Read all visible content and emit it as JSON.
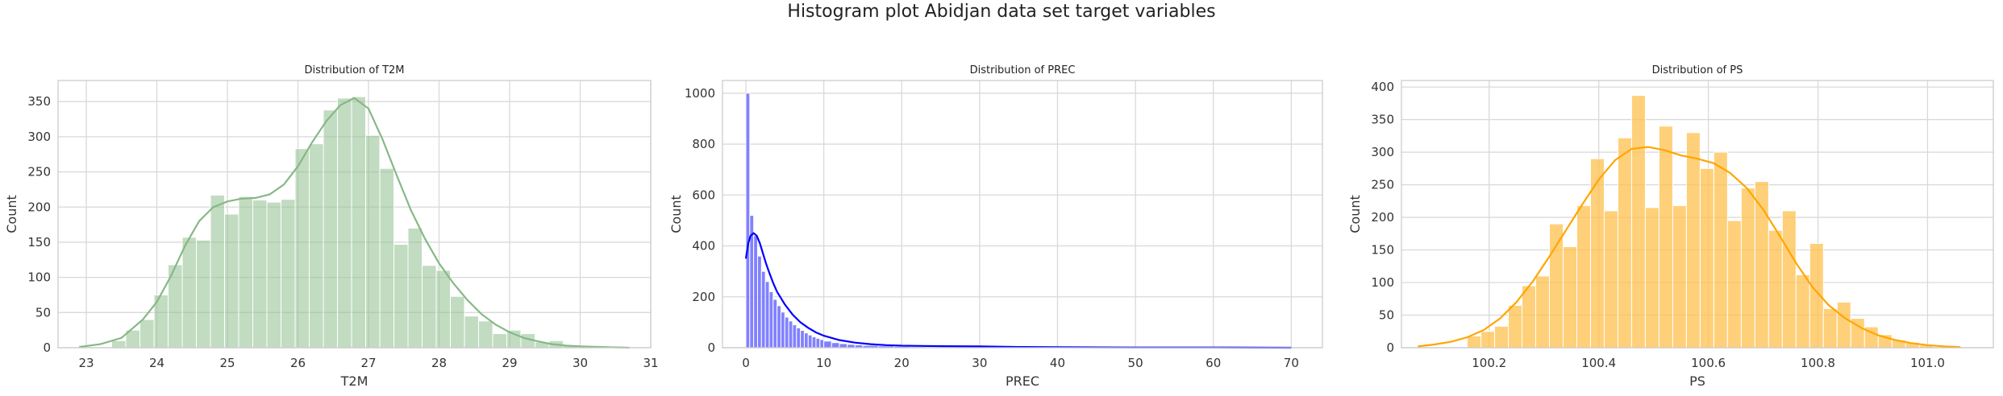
{
  "figure": {
    "title": "Histogram plot Abidjan data set target variables"
  },
  "chart_data": [
    {
      "type": "histogram",
      "title": "Distribution of T2M",
      "xlabel": "T2M",
      "ylabel": "Count",
      "color": "#8fbf8f",
      "kde_color": "#86b886",
      "bar_opacity": 0.55,
      "xlim": [
        22.6,
        31.0
      ],
      "ylim": [
        0,
        380
      ],
      "xticks": [
        23,
        24,
        25,
        26,
        27,
        28,
        29,
        30,
        31
      ],
      "yticks": [
        0,
        50,
        100,
        150,
        200,
        250,
        300,
        350
      ],
      "grid": true,
      "bins": [
        {
          "x0": 23.36,
          "x1": 23.56,
          "count": 10
        },
        {
          "x0": 23.56,
          "x1": 23.76,
          "count": 25
        },
        {
          "x0": 23.76,
          "x1": 23.96,
          "count": 40
        },
        {
          "x0": 23.96,
          "x1": 24.16,
          "count": 75
        },
        {
          "x0": 24.16,
          "x1": 24.36,
          "count": 118
        },
        {
          "x0": 24.36,
          "x1": 24.56,
          "count": 157
        },
        {
          "x0": 24.56,
          "x1": 24.76,
          "count": 153
        },
        {
          "x0": 24.76,
          "x1": 24.96,
          "count": 217
        },
        {
          "x0": 24.96,
          "x1": 25.16,
          "count": 190
        },
        {
          "x0": 25.16,
          "x1": 25.36,
          "count": 215
        },
        {
          "x0": 25.36,
          "x1": 25.56,
          "count": 210
        },
        {
          "x0": 25.56,
          "x1": 25.76,
          "count": 207
        },
        {
          "x0": 25.76,
          "x1": 25.96,
          "count": 211
        },
        {
          "x0": 25.96,
          "x1": 26.16,
          "count": 283
        },
        {
          "x0": 26.16,
          "x1": 26.36,
          "count": 290
        },
        {
          "x0": 26.36,
          "x1": 26.56,
          "count": 338
        },
        {
          "x0": 26.56,
          "x1": 26.76,
          "count": 355
        },
        {
          "x0": 26.76,
          "x1": 26.96,
          "count": 357
        },
        {
          "x0": 26.96,
          "x1": 27.16,
          "count": 302
        },
        {
          "x0": 27.16,
          "x1": 27.36,
          "count": 255
        },
        {
          "x0": 27.36,
          "x1": 27.56,
          "count": 147
        },
        {
          "x0": 27.56,
          "x1": 27.76,
          "count": 170
        },
        {
          "x0": 27.76,
          "x1": 27.96,
          "count": 117
        },
        {
          "x0": 27.96,
          "x1": 28.16,
          "count": 110
        },
        {
          "x0": 28.16,
          "x1": 28.36,
          "count": 73
        },
        {
          "x0": 28.36,
          "x1": 28.56,
          "count": 45
        },
        {
          "x0": 28.56,
          "x1": 28.76,
          "count": 38
        },
        {
          "x0": 28.76,
          "x1": 28.96,
          "count": 20
        },
        {
          "x0": 28.96,
          "x1": 29.16,
          "count": 25
        },
        {
          "x0": 29.16,
          "x1": 29.36,
          "count": 20
        },
        {
          "x0": 29.36,
          "x1": 29.56,
          "count": 8
        },
        {
          "x0": 29.56,
          "x1": 29.76,
          "count": 10
        },
        {
          "x0": 29.76,
          "x1": 29.96,
          "count": 3
        }
      ],
      "kde": {
        "x": [
          22.9,
          23.2,
          23.5,
          23.8,
          24.0,
          24.2,
          24.4,
          24.6,
          24.8,
          25.0,
          25.2,
          25.4,
          25.6,
          25.8,
          26.0,
          26.2,
          26.4,
          26.6,
          26.8,
          27.0,
          27.2,
          27.4,
          27.6,
          27.8,
          28.0,
          28.2,
          28.4,
          28.6,
          28.8,
          29.0,
          29.2,
          29.4,
          29.6,
          29.8,
          30.0,
          30.3,
          30.7
        ],
        "y": [
          1,
          5,
          14,
          40,
          65,
          102,
          145,
          180,
          200,
          208,
          212,
          213,
          218,
          232,
          258,
          292,
          322,
          345,
          355,
          340,
          296,
          245,
          196,
          155,
          120,
          92,
          68,
          48,
          33,
          22,
          14,
          9,
          5,
          3,
          2,
          1,
          0
        ]
      }
    },
    {
      "type": "histogram",
      "title": "Distribution of PREC",
      "xlabel": "PREC",
      "ylabel": "Count",
      "color": "#6b6bff",
      "kde_color": "#0000ff",
      "bar_opacity": 0.85,
      "xlim": [
        -3.0,
        74.0
      ],
      "ylim": [
        0,
        1050
      ],
      "xticks": [
        0,
        10,
        20,
        30,
        40,
        50,
        60,
        70
      ],
      "yticks": [
        0,
        200,
        400,
        600,
        800,
        1000
      ],
      "grid": true,
      "bins": [
        {
          "x0": 0.0,
          "x1": 0.5,
          "count": 1000
        },
        {
          "x0": 0.5,
          "x1": 1.0,
          "count": 520
        },
        {
          "x0": 1.0,
          "x1": 1.5,
          "count": 440
        },
        {
          "x0": 1.5,
          "x1": 2.0,
          "count": 360
        },
        {
          "x0": 2.0,
          "x1": 2.5,
          "count": 300
        },
        {
          "x0": 2.5,
          "x1": 3.0,
          "count": 260
        },
        {
          "x0": 3.0,
          "x1": 3.5,
          "count": 220
        },
        {
          "x0": 3.5,
          "x1": 4.0,
          "count": 190
        },
        {
          "x0": 4.0,
          "x1": 4.5,
          "count": 165
        },
        {
          "x0": 4.5,
          "x1": 5.0,
          "count": 140
        },
        {
          "x0": 5.0,
          "x1": 5.5,
          "count": 120
        },
        {
          "x0": 5.5,
          "x1": 6.0,
          "count": 105
        },
        {
          "x0": 6.0,
          "x1": 6.5,
          "count": 90
        },
        {
          "x0": 6.5,
          "x1": 7.0,
          "count": 78
        },
        {
          "x0": 7.0,
          "x1": 7.5,
          "count": 68
        },
        {
          "x0": 7.5,
          "x1": 8.0,
          "count": 58
        },
        {
          "x0": 8.0,
          "x1": 8.5,
          "count": 50
        },
        {
          "x0": 8.5,
          "x1": 9.0,
          "count": 43
        },
        {
          "x0": 9.0,
          "x1": 9.5,
          "count": 37
        },
        {
          "x0": 9.5,
          "x1": 10.0,
          "count": 32
        },
        {
          "x0": 10.0,
          "x1": 11.0,
          "count": 26
        },
        {
          "x0": 11.0,
          "x1": 12.0,
          "count": 20
        },
        {
          "x0": 12.0,
          "x1": 13.0,
          "count": 16
        },
        {
          "x0": 13.0,
          "x1": 14.0,
          "count": 13
        },
        {
          "x0": 14.0,
          "x1": 15.0,
          "count": 11
        },
        {
          "x0": 15.0,
          "x1": 17.0,
          "count": 9
        },
        {
          "x0": 17.0,
          "x1": 19.0,
          "count": 7
        },
        {
          "x0": 19.0,
          "x1": 21.0,
          "count": 5
        },
        {
          "x0": 21.0,
          "x1": 23.0,
          "count": 4
        },
        {
          "x0": 23.0,
          "x1": 26.0,
          "count": 3
        },
        {
          "x0": 26.0,
          "x1": 30.0,
          "count": 2
        },
        {
          "x0": 30.0,
          "x1": 36.0,
          "count": 1
        },
        {
          "x0": 36.0,
          "x1": 45.0,
          "count": 1
        }
      ],
      "kde": {
        "x": [
          0,
          0.3,
          0.6,
          1.0,
          1.4,
          1.8,
          2.2,
          2.6,
          3.0,
          3.5,
          4,
          5,
          6,
          7,
          8,
          9,
          10,
          12,
          14,
          16,
          18,
          20,
          25,
          30,
          35,
          40,
          50,
          60,
          70
        ],
        "y": [
          350,
          410,
          440,
          450,
          440,
          410,
          370,
          330,
          295,
          255,
          220,
          170,
          130,
          100,
          78,
          60,
          47,
          30,
          20,
          14,
          10,
          8,
          6,
          5,
          3,
          2,
          1,
          1,
          0
        ]
      }
    },
    {
      "type": "histogram",
      "title": "Distribution of PS",
      "xlabel": "PS",
      "ylabel": "Count",
      "color": "#ffc04d",
      "kde_color": "#ffa500",
      "bar_opacity": 0.75,
      "xlim": [
        100.04,
        101.12
      ],
      "ylim": [
        0,
        410
      ],
      "xticks": [
        100.2,
        100.4,
        100.6,
        100.8,
        101.0
      ],
      "xtick_labels": [
        "100.2",
        "100.4",
        "100.6",
        "100.8",
        "101.0"
      ],
      "yticks": [
        0,
        50,
        100,
        150,
        200,
        250,
        300,
        350,
        400
      ],
      "grid": true,
      "bins": [
        {
          "x0": 100.16,
          "x1": 100.185,
          "count": 18
        },
        {
          "x0": 100.185,
          "x1": 100.21,
          "count": 25
        },
        {
          "x0": 100.21,
          "x1": 100.235,
          "count": 33
        },
        {
          "x0": 100.235,
          "x1": 100.26,
          "count": 65
        },
        {
          "x0": 100.26,
          "x1": 100.285,
          "count": 95
        },
        {
          "x0": 100.285,
          "x1": 100.31,
          "count": 110
        },
        {
          "x0": 100.31,
          "x1": 100.335,
          "count": 190
        },
        {
          "x0": 100.335,
          "x1": 100.36,
          "count": 155
        },
        {
          "x0": 100.36,
          "x1": 100.385,
          "count": 218
        },
        {
          "x0": 100.385,
          "x1": 100.41,
          "count": 290
        },
        {
          "x0": 100.41,
          "x1": 100.435,
          "count": 210
        },
        {
          "x0": 100.435,
          "x1": 100.46,
          "count": 322
        },
        {
          "x0": 100.46,
          "x1": 100.485,
          "count": 387
        },
        {
          "x0": 100.485,
          "x1": 100.51,
          "count": 215
        },
        {
          "x0": 100.51,
          "x1": 100.535,
          "count": 340
        },
        {
          "x0": 100.535,
          "x1": 100.56,
          "count": 218
        },
        {
          "x0": 100.56,
          "x1": 100.585,
          "count": 330
        },
        {
          "x0": 100.585,
          "x1": 100.61,
          "count": 275
        },
        {
          "x0": 100.61,
          "x1": 100.635,
          "count": 300
        },
        {
          "x0": 100.635,
          "x1": 100.66,
          "count": 195
        },
        {
          "x0": 100.66,
          "x1": 100.685,
          "count": 245
        },
        {
          "x0": 100.685,
          "x1": 100.71,
          "count": 255
        },
        {
          "x0": 100.71,
          "x1": 100.735,
          "count": 180
        },
        {
          "x0": 100.735,
          "x1": 100.76,
          "count": 210
        },
        {
          "x0": 100.76,
          "x1": 100.785,
          "count": 112
        },
        {
          "x0": 100.785,
          "x1": 100.81,
          "count": 160
        },
        {
          "x0": 100.81,
          "x1": 100.835,
          "count": 60
        },
        {
          "x0": 100.835,
          "x1": 100.86,
          "count": 70
        },
        {
          "x0": 100.86,
          "x1": 100.885,
          "count": 45
        },
        {
          "x0": 100.885,
          "x1": 100.91,
          "count": 32
        },
        {
          "x0": 100.91,
          "x1": 100.935,
          "count": 20
        },
        {
          "x0": 100.935,
          "x1": 100.96,
          "count": 12
        },
        {
          "x0": 100.96,
          "x1": 100.985,
          "count": 8
        },
        {
          "x0": 100.985,
          "x1": 101.01,
          "count": 4
        }
      ],
      "kde": {
        "x": [
          100.07,
          100.1,
          100.13,
          100.16,
          100.19,
          100.22,
          100.25,
          100.28,
          100.31,
          100.34,
          100.37,
          100.4,
          100.43,
          100.46,
          100.49,
          100.52,
          100.55,
          100.58,
          100.61,
          100.64,
          100.67,
          100.7,
          100.73,
          100.76,
          100.79,
          100.82,
          100.85,
          100.88,
          100.91,
          100.94,
          100.97,
          101.0,
          101.03,
          101.06
        ],
        "y": [
          2,
          5,
          9,
          16,
          27,
          45,
          70,
          102,
          140,
          180,
          220,
          258,
          288,
          305,
          308,
          303,
          295,
          290,
          283,
          268,
          245,
          212,
          172,
          130,
          93,
          65,
          45,
          30,
          19,
          12,
          7,
          4,
          2,
          1
        ]
      }
    }
  ]
}
